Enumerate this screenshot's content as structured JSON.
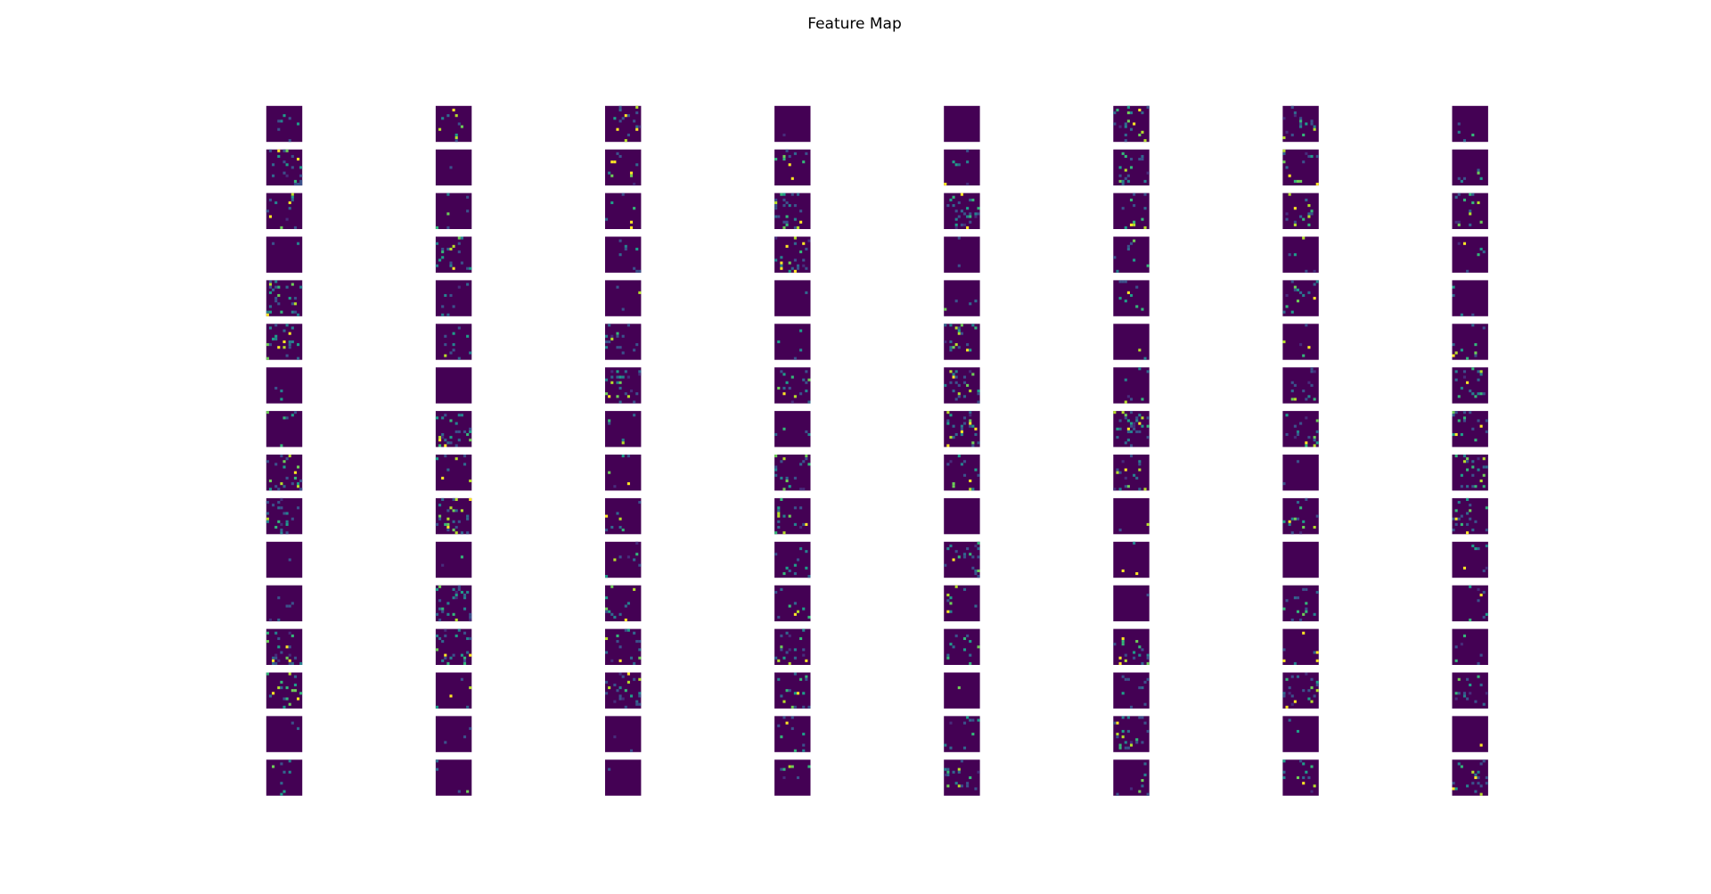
{
  "title": "Feature Map"
}
